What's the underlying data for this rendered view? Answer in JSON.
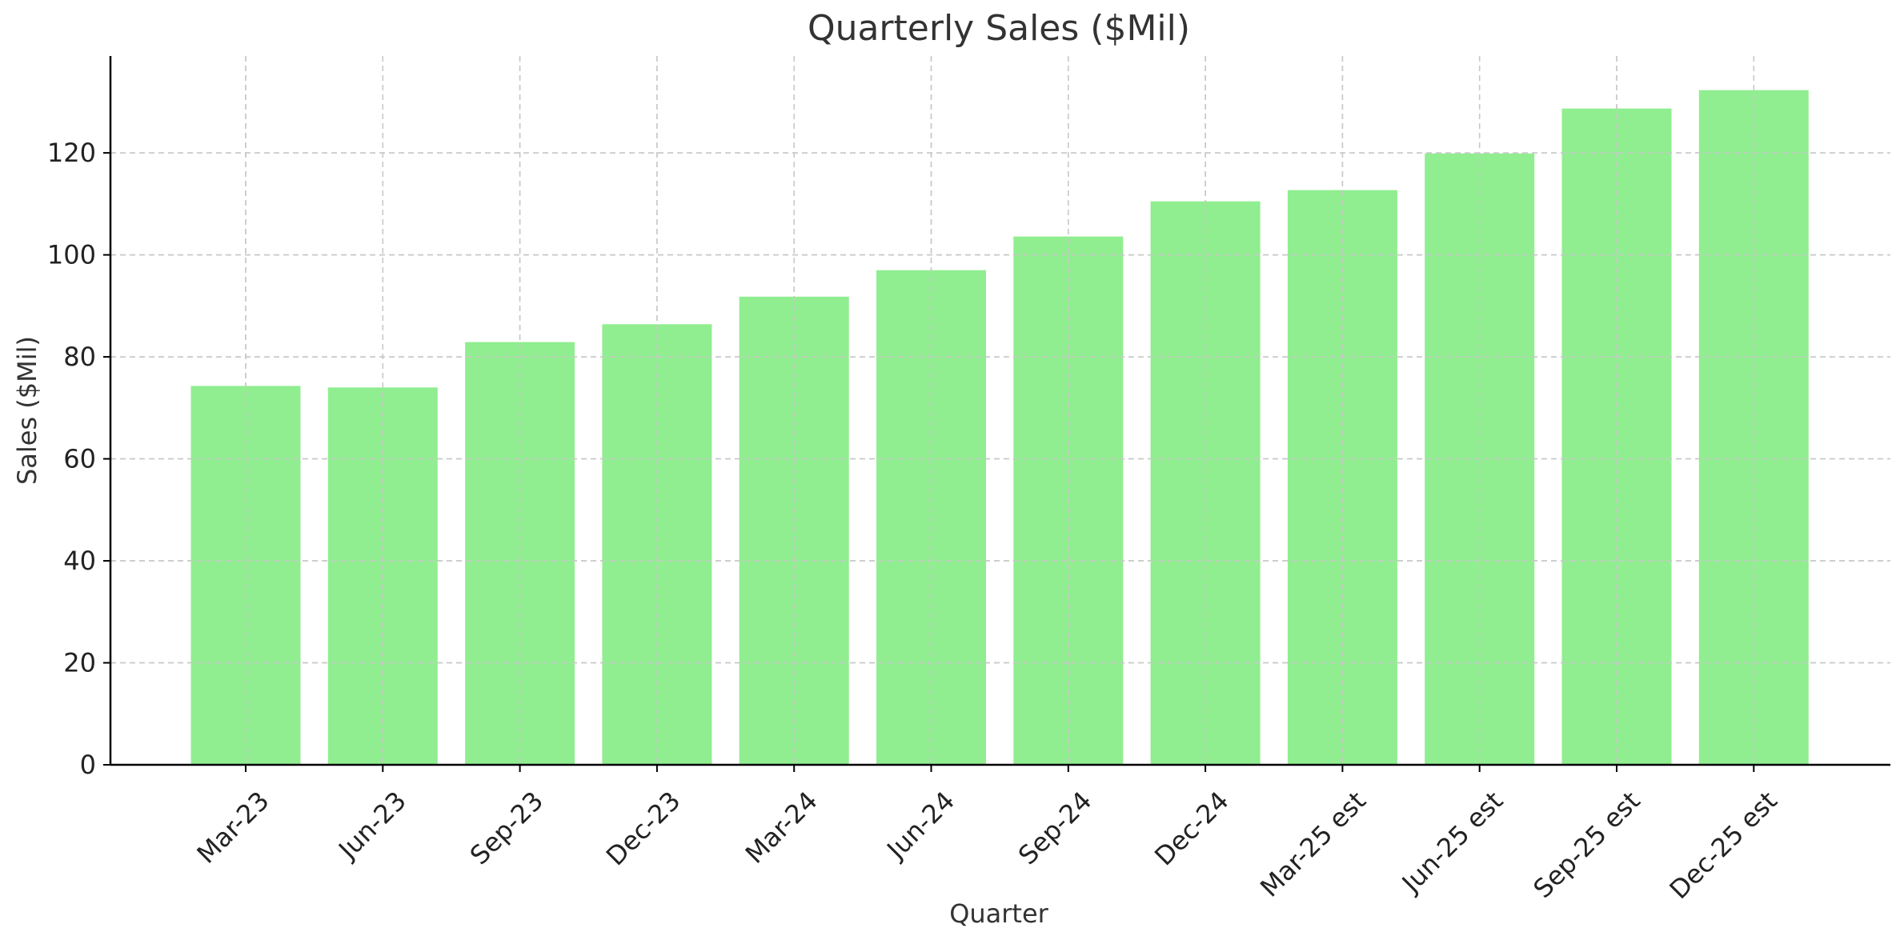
{
  "chart_data": {
    "type": "bar",
    "title": "Quarterly Sales ($Mil)",
    "xlabel": "Quarter",
    "ylabel": "Sales ($Mil)",
    "categories": [
      "Mar-23",
      "Jun-23",
      "Sep-23",
      "Dec-23",
      "Mar-24",
      "Jun-24",
      "Sep-24",
      "Dec-24",
      "Mar-25 est",
      "Jun-25 est",
      "Sep-25 est",
      "Dec-25 est"
    ],
    "values": [
      74.3,
      74.0,
      82.9,
      86.4,
      91.8,
      97.0,
      103.6,
      110.5,
      112.7,
      119.9,
      128.7,
      132.3
    ],
    "ylim": [
      0,
      139
    ],
    "yticks": [
      0,
      20,
      40,
      60,
      80,
      100,
      120
    ],
    "grid": true,
    "colors": {
      "bar": "#90ee90"
    }
  }
}
